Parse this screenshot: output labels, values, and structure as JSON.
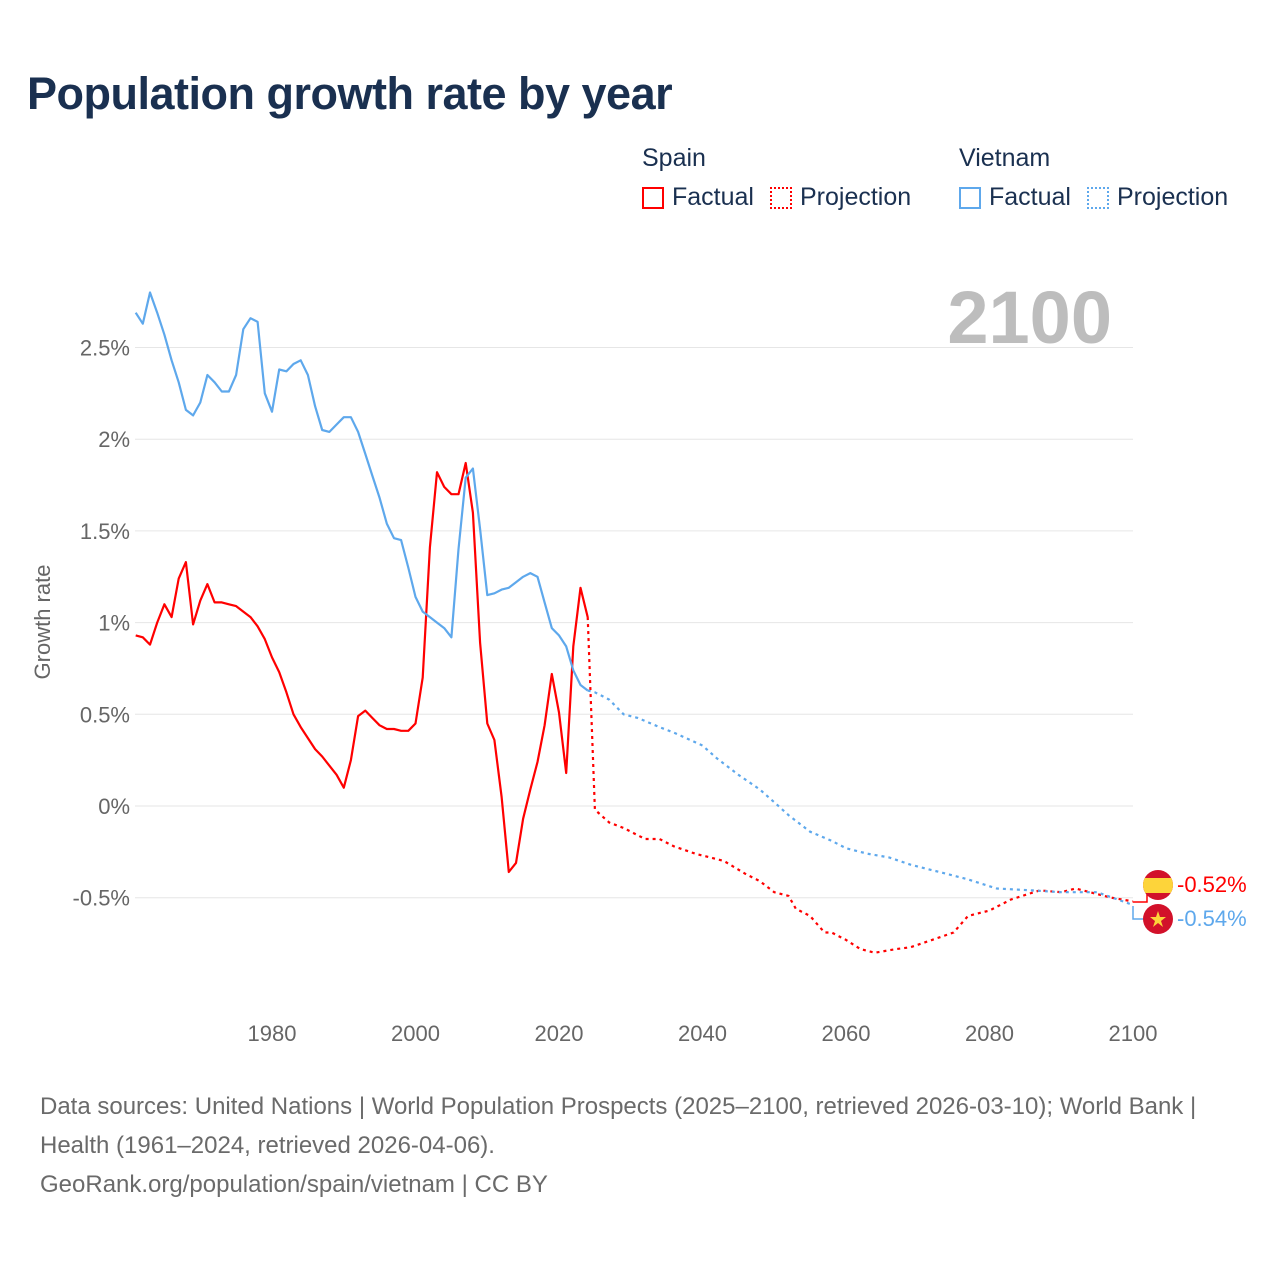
{
  "title": "Population growth rate by year",
  "legend": {
    "groups": [
      {
        "country": "Spain",
        "factual": "Factual",
        "projection": "Projection",
        "color": "#ff0000"
      },
      {
        "country": "Vietnam",
        "factual": "Factual",
        "projection": "Projection",
        "color": "#5ea8ec"
      }
    ]
  },
  "year_watermark": "2100",
  "end_labels": {
    "spain": "-0.52%",
    "vietnam": "-0.54%"
  },
  "footer": {
    "sources": "Data sources: United Nations | World Population Prospects (2025–2100, retrieved 2026-03-10); World Bank | Health (1961–2024, retrieved 2026-04-06).",
    "credit": "GeoRank.org/population/spain/vietnam | CC BY"
  },
  "chart_data": {
    "type": "line",
    "title": "Population growth rate by year",
    "xlabel": "",
    "ylabel": "Growth rate",
    "xlim": [
      1961,
      2100
    ],
    "ylim": [
      -1.0,
      2.85
    ],
    "x_ticks": [
      1980,
      2000,
      2020,
      2040,
      2060,
      2080,
      2100
    ],
    "x_tick_labels": [
      "1980",
      "2000",
      "2020",
      "2040",
      "2060",
      "2080",
      "2100"
    ],
    "y_ticks": [
      -0.5,
      0,
      0.5,
      1,
      1.5,
      2,
      2.5
    ],
    "y_tick_labels": [
      "-0.5%",
      "0%",
      "0.5%",
      "1%",
      "1.5%",
      "2%",
      "2.5%"
    ],
    "grid": true,
    "legend_position": "top-right",
    "series": [
      {
        "name": "Spain Factual",
        "color": "#ff0000",
        "style": "solid",
        "x_start": 1961,
        "values": [
          0.93,
          0.92,
          0.88,
          1.0,
          1.1,
          1.03,
          1.24,
          1.33,
          0.99,
          1.12,
          1.21,
          1.11,
          1.11,
          1.1,
          1.09,
          1.06,
          1.03,
          0.98,
          0.91,
          0.81,
          0.73,
          0.62,
          0.5,
          0.43,
          0.37,
          0.31,
          0.27,
          0.22,
          0.17,
          0.1,
          0.25,
          0.49,
          0.52,
          0.48,
          0.44,
          0.42,
          0.42,
          0.41,
          0.41,
          0.45,
          0.7,
          1.41,
          1.82,
          1.74,
          1.7,
          1.7,
          1.87,
          1.6,
          0.89,
          0.45,
          0.36,
          0.05,
          -0.36,
          -0.31,
          -0.07,
          0.09,
          0.24,
          0.44,
          0.72,
          0.51,
          0.18,
          0.87,
          1.19,
          1.03
        ]
      },
      {
        "name": "Spain Projection",
        "color": "#ff0000",
        "style": "dotted",
        "x": [
          2024,
          2025,
          2027,
          2029,
          2032,
          2034,
          2036,
          2039,
          2043,
          2046,
          2048,
          2050,
          2052,
          2053,
          2055,
          2057,
          2058,
          2060,
          2062,
          2064,
          2067,
          2069,
          2072,
          2075,
          2077,
          2080,
          2083,
          2087,
          2090,
          2092,
          2094,
          2097,
          2100
        ],
        "values": [
          1.03,
          -0.02,
          -0.09,
          -0.12,
          -0.18,
          -0.18,
          -0.22,
          -0.26,
          -0.3,
          -0.37,
          -0.41,
          -0.47,
          -0.49,
          -0.56,
          -0.6,
          -0.69,
          -0.69,
          -0.73,
          -0.78,
          -0.8,
          -0.78,
          -0.77,
          -0.73,
          -0.69,
          -0.6,
          -0.57,
          -0.51,
          -0.46,
          -0.47,
          -0.45,
          -0.47,
          -0.5,
          -0.52
        ]
      },
      {
        "name": "Vietnam Factual",
        "color": "#5ea8ec",
        "style": "solid",
        "x_start": 1961,
        "values": [
          2.69,
          2.63,
          2.8,
          2.69,
          2.57,
          2.43,
          2.31,
          2.16,
          2.13,
          2.2,
          2.35,
          2.31,
          2.26,
          2.26,
          2.35,
          2.6,
          2.66,
          2.64,
          2.25,
          2.15,
          2.38,
          2.37,
          2.41,
          2.43,
          2.35,
          2.18,
          2.05,
          2.04,
          2.08,
          2.12,
          2.12,
          2.04,
          1.92,
          1.8,
          1.68,
          1.54,
          1.46,
          1.45,
          1.3,
          1.14,
          1.06,
          1.03,
          1.0,
          0.97,
          0.92,
          1.4,
          1.79,
          1.84,
          1.51,
          1.15,
          1.16,
          1.18,
          1.19,
          1.22,
          1.25,
          1.27,
          1.25,
          1.11,
          0.97,
          0.93,
          0.87,
          0.74,
          0.66,
          0.63
        ]
      },
      {
        "name": "Vietnam Projection",
        "color": "#5ea8ec",
        "style": "dotted",
        "x": [
          2024,
          2025,
          2027,
          2029,
          2031,
          2034,
          2036,
          2040,
          2042,
          2045,
          2048,
          2050,
          2052,
          2055,
          2058,
          2060,
          2063,
          2066,
          2069,
          2073,
          2077,
          2081,
          2086,
          2090,
          2095,
          2100
        ],
        "values": [
          0.63,
          0.62,
          0.58,
          0.5,
          0.48,
          0.43,
          0.4,
          0.33,
          0.26,
          0.17,
          0.09,
          0.02,
          -0.05,
          -0.14,
          -0.19,
          -0.23,
          -0.26,
          -0.28,
          -0.32,
          -0.36,
          -0.4,
          -0.45,
          -0.46,
          -0.47,
          -0.47,
          -0.54
        ]
      }
    ]
  }
}
